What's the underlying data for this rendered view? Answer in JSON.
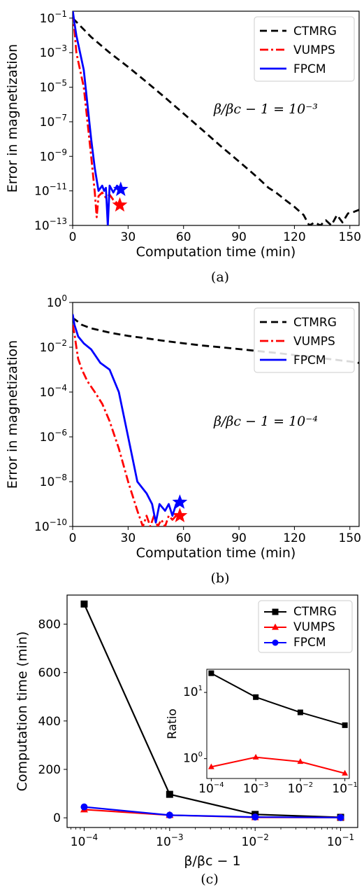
{
  "colors": {
    "CTMRG": "#000000",
    "VUMPS": "#ff0000",
    "FPCM": "#0000ff"
  },
  "chart_data": [
    {
      "type": "line",
      "caption": "(a)",
      "xlabel": "Computation time (min)",
      "ylabel": "Error in magnetization",
      "xlim": [
        0,
        155
      ],
      "ylim_log10": [
        -13,
        -0.6
      ],
      "xticks": [
        "0",
        "30",
        "60",
        "90",
        "120",
        "150"
      ],
      "yticks": [
        {
          "base": "10",
          "exp": "−1"
        },
        {
          "base": "10",
          "exp": "−3"
        },
        {
          "base": "10",
          "exp": "−5"
        },
        {
          "base": "10",
          "exp": "−7"
        },
        {
          "base": "10",
          "exp": "−9"
        },
        {
          "base": "10",
          "exp": "−11"
        },
        {
          "base": "10",
          "exp": "−13"
        }
      ],
      "legend": [
        "CTMRG",
        "VUMPS",
        "FPCM"
      ],
      "legend_position": "top-right",
      "annotation": "β/βc − 1 = 10⁻³",
      "series": [
        {
          "name": "CTMRG",
          "style": "dashed",
          "x": [
            0,
            10,
            20,
            30,
            40,
            50,
            60,
            70,
            80,
            90,
            100,
            106,
            110,
            115,
            120,
            125,
            128,
            131,
            134,
            137,
            140,
            143,
            146,
            149,
            152,
            155
          ],
          "y": [
            0.1,
            0.008,
            0.001,
            0.00015,
            2e-05,
            2.5e-06,
            3e-07,
            3.5e-08,
            4e-09,
            5e-10,
            6e-11,
            1.5e-11,
            8e-12,
            3e-12,
            1.2e-12,
            4e-13,
            1e-13,
            1.5e-13,
            1e-13,
            2e-13,
            1e-13,
            4e-13,
            1.5e-13,
            5e-13,
            6e-13,
            8e-13
          ]
        },
        {
          "name": "VUMPS",
          "style": "dashdot",
          "x": [
            0,
            1,
            2,
            4,
            6,
            8,
            10,
            12,
            13,
            14,
            16,
            18,
            20,
            22,
            24,
            25.5
          ],
          "y": [
            0.2,
            0.02,
            0.001,
            0.0001,
            1e-05,
            1e-07,
            1e-09,
            8e-12,
            3e-13,
            5e-12,
            8e-12,
            4e-12,
            6e-12,
            3e-12,
            2e-12,
            1.5e-12
          ],
          "end_marker": {
            "x": 25.5,
            "y": 1.5e-12
          }
        },
        {
          "name": "FPCM",
          "style": "solid",
          "x": [
            0,
            1,
            2,
            4,
            6,
            8,
            10,
            12,
            14,
            16,
            17,
            18,
            19,
            20,
            22,
            24,
            26
          ],
          "y": [
            0.3,
            0.05,
            0.01,
            0.001,
            0.0001,
            1e-06,
            1e-08,
            2e-10,
            1e-11,
            2e-11,
            1e-11,
            1.5e-11,
            1e-13,
            2e-11,
            8e-12,
            2e-11,
            1.2e-11
          ],
          "end_marker": {
            "x": 26,
            "y": 1.2e-11
          }
        }
      ]
    },
    {
      "type": "line",
      "caption": "(b)",
      "xlabel": "Computation time (min)",
      "ylabel": "Error in magnetization",
      "xlim": [
        0,
        155
      ],
      "ylim_log10": [
        -10,
        0
      ],
      "xticks": [
        "0",
        "30",
        "60",
        "90",
        "120",
        "150"
      ],
      "yticks": [
        {
          "base": "10",
          "exp": "0"
        },
        {
          "base": "10",
          "exp": "−2"
        },
        {
          "base": "10",
          "exp": "−4"
        },
        {
          "base": "10",
          "exp": "−6"
        },
        {
          "base": "10",
          "exp": "−8"
        },
        {
          "base": "10",
          "exp": "−10"
        }
      ],
      "legend": [
        "CTMRG",
        "VUMPS",
        "FPCM"
      ],
      "legend_position": "top-right",
      "annotation": "β/βc − 1 = 10⁻⁴",
      "series": [
        {
          "name": "CTMRG",
          "style": "dashed",
          "x": [
            0,
            1,
            5,
            10,
            20,
            30,
            40,
            50,
            60,
            70,
            80,
            90,
            100,
            110,
            120,
            130,
            140,
            150,
            155
          ],
          "y": [
            0.15,
            0.18,
            0.1,
            0.07,
            0.045,
            0.032,
            0.025,
            0.019,
            0.015,
            0.012,
            0.01,
            0.0083,
            0.0068,
            0.0056,
            0.0045,
            0.0036,
            0.0029,
            0.0023,
            0.002
          ]
        },
        {
          "name": "VUMPS",
          "style": "dashdot",
          "x": [
            0,
            1,
            2,
            3,
            5,
            8,
            12,
            16,
            20,
            25,
            30,
            35,
            38,
            40,
            42,
            44,
            46,
            48,
            50,
            52,
            54,
            56,
            58
          ],
          "y": [
            0.1,
            0.04,
            0.01,
            0.003,
            0.001,
            0.0003,
            0.0001,
            3e-05,
            5e-06,
            3e-07,
            1e-08,
            5e-10,
            1e-10,
            3e-10,
            1e-10,
            3e-10,
            1e-10,
            2e-10,
            1e-10,
            3e-10,
            2e-10,
            3e-10,
            3e-10
          ],
          "end_marker": {
            "x": 58,
            "y": 3e-10
          }
        },
        {
          "name": "FPCM",
          "style": "solid",
          "x": [
            0,
            1,
            3,
            6,
            10,
            15,
            20,
            25,
            30,
            35,
            40,
            43,
            45,
            47,
            50,
            52,
            54,
            56,
            58
          ],
          "y": [
            0.3,
            0.1,
            0.03,
            0.015,
            0.008,
            0.002,
            0.001,
            0.0001,
            1e-06,
            1e-08,
            3e-09,
            1e-09,
            1.5e-10,
            1e-09,
            5e-10,
            1e-09,
            3e-10,
            1e-09,
            1.2e-09
          ],
          "end_marker": {
            "x": 58,
            "y": 1.2e-09
          }
        }
      ]
    },
    {
      "type": "line",
      "caption": "(c)",
      "xlabel": "β/βc − 1",
      "ylabel": "Computation time (min)",
      "xscale": "log",
      "x": [
        0.0001,
        0.001,
        0.01,
        0.1
      ],
      "xticks": [
        {
          "base": "10",
          "exp": "−4"
        },
        {
          "base": "10",
          "exp": "−3"
        },
        {
          "base": "10",
          "exp": "−2"
        },
        {
          "base": "10",
          "exp": "−1"
        }
      ],
      "ylim": [
        -40,
        920
      ],
      "yticks": [
        "0",
        "200",
        "400",
        "600",
        "800"
      ],
      "legend": [
        "CTMRG",
        "VUMPS",
        "FPCM"
      ],
      "legend_position": "top-right",
      "series": [
        {
          "name": "CTMRG",
          "marker": "square",
          "values": [
            883,
            97,
            14,
            2
          ]
        },
        {
          "name": "VUMPS",
          "marker": "triangle",
          "values": [
            34,
            11,
            2,
            1
          ]
        },
        {
          "name": "FPCM",
          "marker": "circle",
          "values": [
            45,
            11,
            3,
            1
          ]
        }
      ],
      "inset": {
        "type": "line",
        "ylabel": "Ratio",
        "xscale": "log",
        "yscale": "log",
        "x": [
          0.0001,
          0.001,
          0.01,
          0.1
        ],
        "xticks": [
          {
            "base": "10",
            "exp": "−4"
          },
          {
            "base": "10",
            "exp": "−3"
          },
          {
            "base": "10",
            "exp": "−2"
          },
          {
            "base": "10",
            "exp": "−1"
          }
        ],
        "yticks": [
          {
            "base": "10",
            "exp": "1"
          },
          {
            "base": "10",
            "exp": "0"
          }
        ],
        "ylim_log10": [
          -0.3,
          1.35
        ],
        "series": [
          {
            "name": "CTMRG",
            "marker": "square",
            "values": [
              19.5,
              8.5,
              5.0,
              3.2
            ]
          },
          {
            "name": "VUMPS",
            "marker": "triangle",
            "values": [
              0.75,
              1.05,
              0.9,
              0.6
            ]
          }
        ]
      }
    }
  ]
}
